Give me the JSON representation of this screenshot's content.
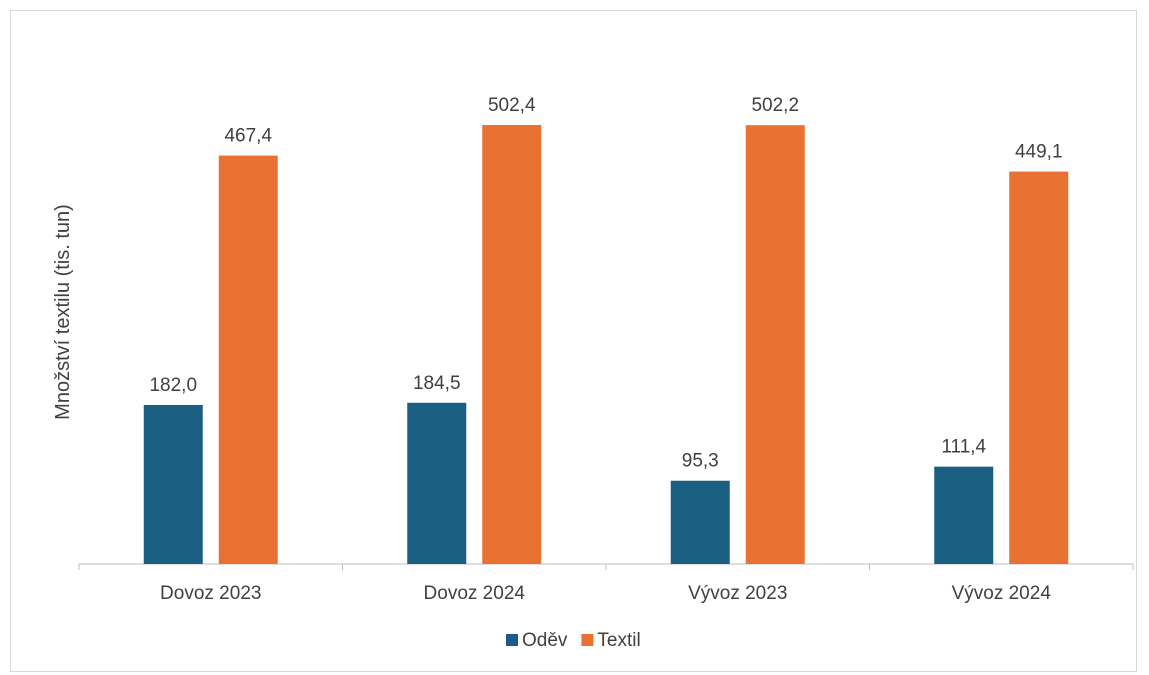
{
  "chart_data": {
    "type": "bar",
    "title": "",
    "xlabel": "",
    "ylabel": "Množství textilu (tis. tun)",
    "categories": [
      "Dovoz 2023",
      "Dovoz 2024",
      "Vývoz 2023",
      "Vývoz 2024"
    ],
    "series": [
      {
        "name": "Oděv",
        "color": "#1a5e82",
        "values": [
          182.0,
          184.5,
          95.3,
          111.4
        ],
        "value_labels": [
          "182,0",
          "184,5",
          "95,3",
          "111,4"
        ]
      },
      {
        "name": "Textil",
        "color": "#e97132",
        "values": [
          467.4,
          502.4,
          502.2,
          449.1
        ],
        "value_labels": [
          "467,4",
          "502,4",
          "502,2",
          "449,1"
        ]
      }
    ],
    "ylim": [
      0,
      550
    ],
    "grid": false,
    "legend_position": "bottom"
  }
}
